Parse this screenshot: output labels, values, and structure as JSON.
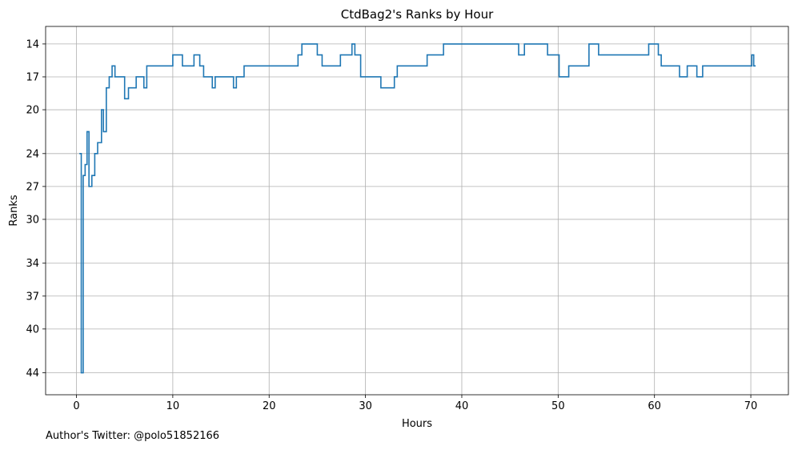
{
  "chart_data": {
    "type": "line",
    "title": "CtdBag2's Ranks by Hour",
    "xlabel": "Hours",
    "ylabel": "Ranks",
    "xlim": [
      -3.2,
      73.9
    ],
    "ylim": [
      46,
      12.4
    ],
    "y_inverted": true,
    "grid": true,
    "line_color": "#1f77b4",
    "grid_color": "#b0b0b0",
    "xticks": [
      0,
      10,
      20,
      30,
      40,
      50,
      60,
      70
    ],
    "yticks": [
      14,
      17,
      20,
      24,
      27,
      30,
      34,
      37,
      40,
      44
    ],
    "series": [
      {
        "step": "post",
        "x": [
          0.3,
          0.5,
          0.7,
          0.9,
          1.1,
          1.3,
          1.6,
          1.9,
          2.2,
          2.6,
          2.8,
          3.1,
          3.4,
          3.7,
          4.0,
          5.0,
          5.4,
          6.2,
          7.0,
          7.3,
          7.6,
          10.0,
          11.0,
          12.2,
          12.8,
          13.2,
          14.1,
          14.4,
          16.3,
          16.6,
          17.4,
          23.0,
          23.4,
          25.0,
          25.5,
          27.4,
          28.6,
          28.9,
          29.5,
          31.6,
          33.0,
          33.3,
          36.4,
          38.1,
          45.9,
          46.5,
          48.9,
          50.1,
          51.1,
          53.2,
          54.2,
          59.4,
          60.4,
          60.7,
          62.6,
          63.4,
          64.4,
          65.0,
          70.1,
          70.3,
          70.5
        ],
        "y": [
          24,
          44,
          26,
          25,
          22,
          27,
          26,
          24,
          23,
          20,
          22,
          18,
          17,
          16,
          17,
          19,
          18,
          17,
          18,
          16,
          16,
          15,
          16,
          15,
          16,
          17,
          18,
          17,
          18,
          17,
          16,
          15,
          14,
          15,
          16,
          15,
          14,
          15,
          17,
          18,
          17,
          16,
          15,
          14,
          15,
          14,
          15,
          17,
          16,
          14,
          15,
          14,
          15,
          16,
          17,
          16,
          17,
          16,
          15,
          16,
          16
        ]
      }
    ]
  },
  "footer": {
    "credit": "Author's Twitter: @polo51852166"
  }
}
